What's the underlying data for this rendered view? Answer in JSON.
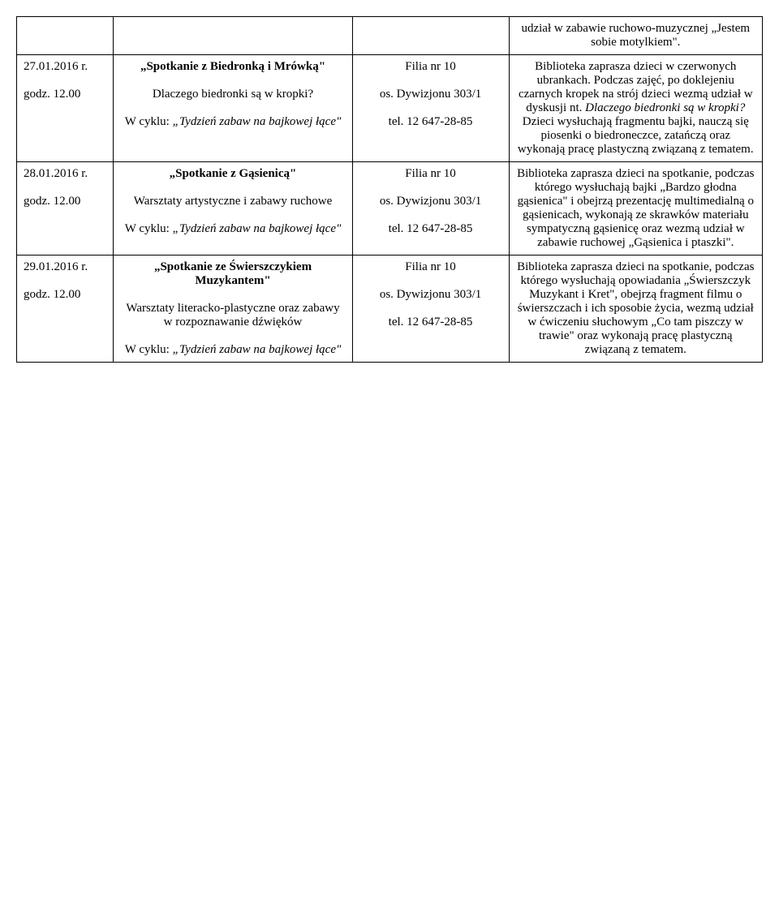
{
  "rows": [
    {
      "date": "",
      "time": "",
      "event_title": "",
      "event_subtitle": "",
      "event_note": "",
      "branch": "",
      "address": "",
      "phone": "",
      "description": "udział w zabawie ruchowo-muzycznej „Jestem sobie motylkiem\"."
    },
    {
      "date": "27.01.2016 r.",
      "time": "godz. 12.00",
      "event_title": "„Spotkanie z Biedronką i Mrówką\"",
      "event_subtitle": "Dlaczego  biedronki są w kropki?",
      "event_note": "W cyklu: „Tydzień zabaw na bajkowej łące\"",
      "branch": "Filia nr 10",
      "address": "os. Dywizjonu 303/1",
      "phone": "tel. 12 647-28-85",
      "description": "Biblioteka zaprasza dzieci w czerwonych ubrankach. Podczas zajęć, po doklejeniu czarnych kropek na strój dzieci wezmą udział w dyskusji nt. <span class=\"italic\">Dlaczego biedronki są w kropki?</span> Dzieci wysłuchają fragmentu bajki, nauczą się piosenki o biedroneczce, zatańczą oraz wykonają pracę plastyczną związaną z tematem."
    },
    {
      "date": "28.01.2016 r.",
      "time": "godz. 12.00",
      "event_title": "„Spotkanie z Gąsienicą\"",
      "event_subtitle": "Warsztaty artystyczne i zabawy ruchowe",
      "event_note": "W cyklu: „Tydzień zabaw na bajkowej łące\"",
      "branch": "Filia nr 10",
      "address": "os. Dywizjonu 303/1",
      "phone": "tel. 12 647-28-85",
      "description": "Biblioteka zaprasza dzieci na spotkanie, podczas którego wysłuchają bajki „Bardzo głodna gąsienica\" i obejrzą prezentację multimedialną o gąsienicach, wykonają ze skrawków materiału sympatyczną gąsienicę oraz wezmą udział w zabawie ruchowej „Gąsienica i ptaszki\"."
    },
    {
      "date": "29.01.2016 r.",
      "time": "godz. 12.00",
      "event_title": "„Spotkanie ze Świerszczykiem Muzykantem\"",
      "event_subtitle": "Warsztaty literacko-plastyczne oraz zabawy w rozpoznawanie dźwięków",
      "event_note": "W cyklu: „Tydzień zabaw na bajkowej łące\"",
      "branch": "Filia nr 10",
      "address": "os. Dywizjonu 303/1",
      "phone": "tel. 12 647-28-85",
      "description": "Biblioteka zaprasza dzieci na spotkanie, podczas którego wysłuchają opowiadania „Świerszczyk Muzykant i Kret\", obejrzą fragment filmu o świerszczach i ich sposobie życia, wezmą udział w ćwiczeniu słuchowym „Co tam piszczy w trawie\" oraz wykonają pracę plastyczną związaną z tematem."
    }
  ]
}
